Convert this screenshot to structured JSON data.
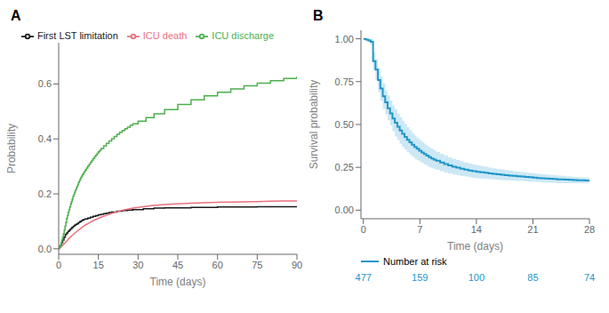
{
  "chart_data": [
    {
      "type": "line",
      "title": "A",
      "xlabel": "Time (days)",
      "ylabel": "Probability",
      "xlim": [
        0,
        90
      ],
      "ylim": [
        -0.02,
        0.75
      ],
      "xticks": [
        0,
        15,
        30,
        45,
        60,
        75,
        90
      ],
      "yticks": [
        {
          "value": 0.0,
          "label": "0.0"
        },
        0.2,
        0.4,
        0.6
      ],
      "grid": false,
      "legend": "top",
      "series": [
        {
          "name": "First LST limitation",
          "color": "#1a1a1a",
          "type": "step",
          "x": [
            0,
            0.5,
            1,
            1.5,
            2,
            2.5,
            3,
            3.5,
            4,
            4.5,
            5,
            5.5,
            6,
            6.5,
            7,
            7.5,
            8,
            8.5,
            9,
            9.5,
            10,
            11,
            12,
            13,
            14,
            15,
            16,
            17,
            18,
            19,
            20,
            22,
            24,
            26,
            28,
            32,
            36,
            40,
            50,
            60,
            75,
            90
          ],
          "values": [
            0.005,
            0.012,
            0.022,
            0.032,
            0.042,
            0.052,
            0.058,
            0.063,
            0.068,
            0.073,
            0.078,
            0.082,
            0.086,
            0.089,
            0.092,
            0.096,
            0.099,
            0.102,
            0.105,
            0.107,
            0.109,
            0.112,
            0.115,
            0.118,
            0.121,
            0.124,
            0.126,
            0.128,
            0.13,
            0.132,
            0.134,
            0.137,
            0.139,
            0.141,
            0.143,
            0.146,
            0.148,
            0.149,
            0.151,
            0.152,
            0.153,
            0.153
          ]
        },
        {
          "name": "ICU death",
          "color": "#e8707a",
          "type": "line",
          "x": [
            0,
            1,
            2,
            3,
            4,
            5,
            6,
            7,
            8,
            9,
            10,
            12,
            14,
            16,
            18,
            20,
            22,
            24,
            26,
            28,
            30,
            35,
            40,
            45,
            50,
            55,
            60,
            65,
            70,
            75,
            80,
            85,
            90
          ],
          "values": [
            0.0,
            0.008,
            0.018,
            0.028,
            0.038,
            0.048,
            0.056,
            0.064,
            0.072,
            0.079,
            0.086,
            0.097,
            0.107,
            0.115,
            0.122,
            0.129,
            0.135,
            0.14,
            0.144,
            0.148,
            0.151,
            0.157,
            0.161,
            0.164,
            0.166,
            0.168,
            0.169,
            0.17,
            0.171,
            0.172,
            0.173,
            0.174,
            0.174
          ]
        },
        {
          "name": "ICU discharge",
          "color": "#4daf4d",
          "type": "step",
          "x": [
            0,
            0.3,
            0.6,
            0.9,
            1.2,
            1.5,
            1.8,
            2.1,
            2.4,
            2.7,
            3.0,
            3.3,
            3.6,
            3.9,
            4.2,
            4.5,
            4.8,
            5.1,
            5.4,
            5.7,
            6.0,
            6.3,
            6.6,
            6.9,
            7.2,
            7.5,
            7.8,
            8.1,
            8.4,
            8.7,
            9.0,
            9.5,
            10.0,
            10.5,
            11.0,
            11.5,
            12.0,
            12.5,
            13.0,
            13.5,
            14.0,
            14.5,
            15.0,
            15.5,
            16.0,
            17.0,
            18.0,
            19.0,
            20.0,
            21.0,
            22.0,
            23.0,
            24.0,
            25.0,
            26.0,
            27.0,
            28.0,
            30.0,
            33.0,
            36.0,
            40.0,
            45.0,
            50.0,
            55.0,
            60.0,
            65.0,
            70.0,
            75.0,
            80.0,
            85.0,
            90.0
          ],
          "values": [
            0.0,
            0.006,
            0.013,
            0.022,
            0.032,
            0.043,
            0.055,
            0.068,
            0.082,
            0.096,
            0.11,
            0.122,
            0.133,
            0.143,
            0.153,
            0.163,
            0.172,
            0.181,
            0.19,
            0.198,
            0.206,
            0.213,
            0.22,
            0.227,
            0.234,
            0.241,
            0.248,
            0.254,
            0.26,
            0.265,
            0.271,
            0.279,
            0.287,
            0.294,
            0.301,
            0.308,
            0.315,
            0.322,
            0.329,
            0.335,
            0.341,
            0.347,
            0.353,
            0.359,
            0.365,
            0.375,
            0.384,
            0.393,
            0.401,
            0.409,
            0.417,
            0.424,
            0.431,
            0.437,
            0.443,
            0.449,
            0.455,
            0.465,
            0.478,
            0.491,
            0.507,
            0.525,
            0.542,
            0.557,
            0.57,
            0.582,
            0.593,
            0.603,
            0.612,
            0.62,
            0.628
          ]
        }
      ]
    },
    {
      "type": "line",
      "title": "B",
      "xlabel": "Time (days)",
      "ylabel": "Survival probability",
      "xlim": [
        -0.3,
        28
      ],
      "ylim": [
        -0.05,
        1.05
      ],
      "xticks": [
        0,
        7,
        14,
        21,
        28
      ],
      "yticks": [
        {
          "value": 0.0,
          "label": "0.00"
        },
        0.25,
        {
          "value": 0.5,
          "label": "0.50"
        },
        0.75,
        {
          "value": 1.0,
          "label": "1.00"
        }
      ],
      "grid": false,
      "legend": false,
      "series": [
        {
          "color": "#2196c8",
          "type": "step",
          "ci_color": "#90cce8",
          "x": [
            0,
            0.3,
            0.6,
            0.9,
            1.2,
            1.5,
            1.8,
            2.1,
            2.4,
            2.7,
            3.0,
            3.3,
            3.6,
            3.9,
            4.2,
            4.5,
            4.8,
            5.1,
            5.4,
            5.7,
            6.0,
            6.3,
            6.6,
            6.9,
            7.2,
            7.5,
            7.8,
            8.1,
            8.4,
            8.7,
            9.0,
            9.5,
            10.0,
            10.5,
            11.0,
            11.5,
            12.0,
            12.5,
            13.0,
            13.5,
            14.0,
            14.5,
            15.0,
            15.5,
            16.0,
            16.5,
            17.0,
            17.5,
            18.0,
            18.5,
            19.0,
            19.5,
            20.0,
            20.5,
            21.0,
            21.5,
            22.0,
            22.5,
            23.0,
            23.5,
            24.0,
            24.5,
            25.0,
            25.5,
            26.0,
            26.5,
            27.0,
            27.5,
            28.0
          ],
          "values": [
            1.0,
            0.995,
            0.99,
            0.983,
            0.87,
            0.82,
            0.76,
            0.71,
            0.665,
            0.63,
            0.595,
            0.565,
            0.535,
            0.51,
            0.487,
            0.465,
            0.445,
            0.428,
            0.411,
            0.396,
            0.382,
            0.369,
            0.358,
            0.347,
            0.337,
            0.327,
            0.318,
            0.309,
            0.302,
            0.295,
            0.288,
            0.278,
            0.269,
            0.261,
            0.254,
            0.248,
            0.242,
            0.237,
            0.232,
            0.228,
            0.224,
            0.221,
            0.218,
            0.215,
            0.212,
            0.209,
            0.207,
            0.204,
            0.202,
            0.2,
            0.198,
            0.196,
            0.194,
            0.192,
            0.19,
            0.188,
            0.186,
            0.185,
            0.183,
            0.182,
            0.18,
            0.179,
            0.178,
            0.177,
            0.176,
            0.175,
            0.174,
            0.173,
            0.172
          ],
          "ci_upper": [
            1.0,
            1.0,
            1.0,
            1.0,
            0.92,
            0.88,
            0.83,
            0.78,
            0.74,
            0.7,
            0.67,
            0.64,
            0.61,
            0.59,
            0.565,
            0.543,
            0.522,
            0.503,
            0.484,
            0.467,
            0.451,
            0.437,
            0.424,
            0.411,
            0.399,
            0.388,
            0.377,
            0.367,
            0.358,
            0.349,
            0.34,
            0.329,
            0.318,
            0.308,
            0.3,
            0.292,
            0.285,
            0.278,
            0.272,
            0.267,
            0.262,
            0.257,
            0.253,
            0.249,
            0.245,
            0.241,
            0.238,
            0.234,
            0.231,
            0.228,
            0.225,
            0.222,
            0.22,
            0.217,
            0.215,
            0.212,
            0.21,
            0.208,
            0.206,
            0.204,
            0.202,
            0.2,
            0.198,
            0.196,
            0.194,
            0.193,
            0.191,
            0.19,
            0.188
          ],
          "ci_lower": [
            1.0,
            0.99,
            0.98,
            0.966,
            0.82,
            0.76,
            0.69,
            0.64,
            0.59,
            0.56,
            0.525,
            0.495,
            0.46,
            0.43,
            0.409,
            0.387,
            0.368,
            0.353,
            0.338,
            0.325,
            0.313,
            0.301,
            0.292,
            0.283,
            0.275,
            0.266,
            0.259,
            0.251,
            0.246,
            0.241,
            0.236,
            0.227,
            0.22,
            0.214,
            0.208,
            0.204,
            0.199,
            0.196,
            0.192,
            0.189,
            0.186,
            0.185,
            0.183,
            0.181,
            0.179,
            0.177,
            0.176,
            0.174,
            0.173,
            0.172,
            0.171,
            0.17,
            0.168,
            0.167,
            0.165,
            0.164,
            0.162,
            0.162,
            0.16,
            0.16,
            0.158,
            0.158,
            0.158,
            0.158,
            0.158,
            0.157,
            0.157,
            0.156,
            0.156
          ]
        }
      ],
      "risk_table": {
        "label": "Number at risk",
        "x": [
          0,
          7,
          14,
          21,
          28
        ],
        "values": [
          477,
          159,
          100,
          85,
          74
        ],
        "color": "#2196c8"
      }
    }
  ]
}
